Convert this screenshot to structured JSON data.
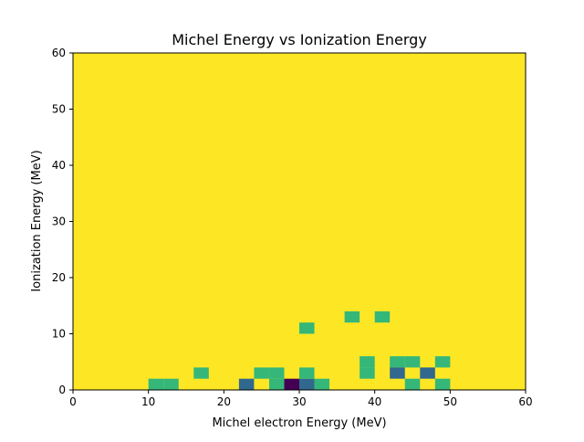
{
  "chart_data": {
    "type": "heatmap",
    "title": "Michel Energy vs Ionization Energy",
    "xlabel": "Michel electron Energy (MeV)",
    "ylabel": "Ionization Energy (MeV)",
    "xlim": [
      0,
      60
    ],
    "ylim": [
      0,
      60
    ],
    "xticks": [
      0,
      10,
      20,
      30,
      40,
      50,
      60
    ],
    "yticks": [
      0,
      10,
      20,
      30,
      40,
      50,
      60
    ],
    "bin_width_x": 2,
    "bin_width_y": 2,
    "colormap": "viridis",
    "level_colors": {
      "0": "#440154",
      "1": "#31688e",
      "2": "#35b779",
      "3": "#fde725"
    },
    "background_level": 3,
    "cells": [
      {
        "x": 10,
        "y": 0,
        "level": 2
      },
      {
        "x": 12,
        "y": 0,
        "level": 2
      },
      {
        "x": 16,
        "y": 2,
        "level": 2
      },
      {
        "x": 22,
        "y": 0,
        "level": 1
      },
      {
        "x": 24,
        "y": 2,
        "level": 2
      },
      {
        "x": 26,
        "y": 2,
        "level": 2
      },
      {
        "x": 26,
        "y": 0,
        "level": 2
      },
      {
        "x": 28,
        "y": 0,
        "level": 0
      },
      {
        "x": 30,
        "y": 0,
        "level": 1
      },
      {
        "x": 30,
        "y": 2,
        "level": 2
      },
      {
        "x": 32,
        "y": 0,
        "level": 2
      },
      {
        "x": 30,
        "y": 10,
        "level": 2
      },
      {
        "x": 36,
        "y": 12,
        "level": 2
      },
      {
        "x": 40,
        "y": 12,
        "level": 2
      },
      {
        "x": 38,
        "y": 4,
        "level": 2
      },
      {
        "x": 38,
        "y": 2,
        "level": 2
      },
      {
        "x": 42,
        "y": 4,
        "level": 2
      },
      {
        "x": 44,
        "y": 4,
        "level": 2
      },
      {
        "x": 42,
        "y": 2,
        "level": 1
      },
      {
        "x": 44,
        "y": 0,
        "level": 2
      },
      {
        "x": 46,
        "y": 2,
        "level": 1
      },
      {
        "x": 48,
        "y": 4,
        "level": 2
      },
      {
        "x": 48,
        "y": 0,
        "level": 2
      }
    ]
  }
}
